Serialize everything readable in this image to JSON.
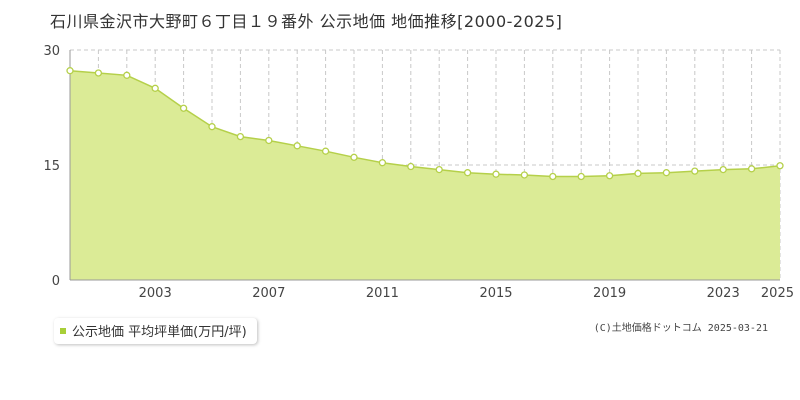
{
  "chart_data": {
    "type": "area",
    "title": "石川県金沢市大野町６丁目１９番外 公示地価 地価推移[2000-2025]",
    "xlabel": "",
    "ylabel": "",
    "x": [
      2000,
      2001,
      2002,
      2003,
      2004,
      2005,
      2006,
      2007,
      2008,
      2009,
      2010,
      2011,
      2012,
      2013,
      2014,
      2015,
      2016,
      2017,
      2018,
      2019,
      2020,
      2021,
      2022,
      2023,
      2024,
      2025
    ],
    "series": [
      {
        "name": "公示地価 平均坪単価(万円/坪)",
        "values": [
          27.3,
          27.0,
          26.7,
          25.0,
          22.4,
          20.0,
          18.7,
          18.2,
          17.5,
          16.8,
          16.0,
          15.3,
          14.8,
          14.4,
          14.0,
          13.8,
          13.7,
          13.5,
          13.5,
          13.6,
          13.9,
          14.0,
          14.2,
          14.4,
          14.5,
          14.9
        ]
      }
    ],
    "x_tick_labels": [
      "2003",
      "2007",
      "2011",
      "2015",
      "2019",
      "2023",
      "2025"
    ],
    "x_tick_values": [
      2003,
      2007,
      2011,
      2015,
      2019,
      2023,
      2025
    ],
    "y_tick_labels": [
      "0",
      "15",
      "30"
    ],
    "y_tick_values": [
      0,
      15,
      30
    ],
    "xlim": [
      2000,
      2025
    ],
    "ylim": [
      0,
      30
    ],
    "grid": true,
    "legend_position": "bottom-left",
    "colors": {
      "fill": "#dbeb96",
      "line": "#b5d04a",
      "marker_fill": "#ffffff",
      "marker_stroke": "#b5d04a",
      "grid": "#c8c8c8",
      "axis": "#999999",
      "legend_swatch": "#a8cf38"
    }
  },
  "copyright": "(C)土地価格ドットコム 2025-03-21"
}
